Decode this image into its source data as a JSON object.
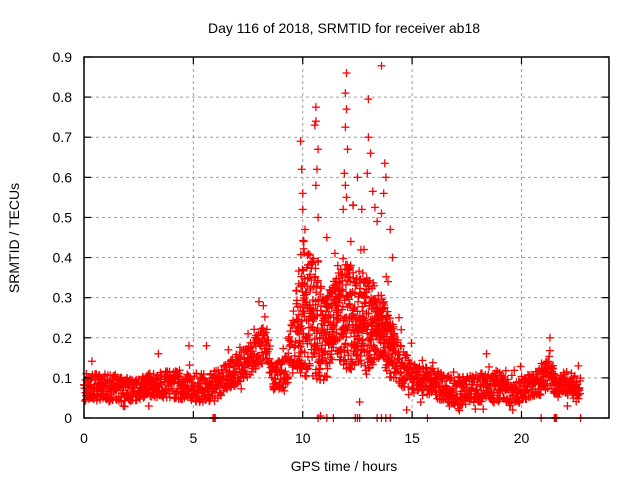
{
  "chart_data": {
    "type": "scatter",
    "title": "Day 116 of 2018, SRMTID for receiver ab18",
    "xlabel": "GPS time / hours",
    "ylabel": "SRMTID / TECUs",
    "xlim": [
      0,
      24
    ],
    "ylim": [
      0,
      0.9
    ],
    "xticks": [
      0,
      5,
      10,
      15,
      20
    ],
    "xtick_labels": [
      "0",
      "5",
      "10",
      "15",
      "20"
    ],
    "yticks": [
      0,
      0.1,
      0.2,
      0.3,
      0.4,
      0.5,
      0.6,
      0.7,
      0.8,
      0.9
    ],
    "ytick_labels": [
      "0",
      "0.1",
      "0.2",
      "0.3",
      "0.4",
      "0.5",
      "0.6",
      "0.7",
      "0.8",
      "0.9"
    ],
    "grid": true,
    "marker": "+",
    "color": "#ff0000",
    "series": [
      {
        "name": "SRMTID",
        "envelope_description": "Dense samples; baseline ~0.04-0.12 TECU from 0-6.5 h, rising to ~0.1-0.25 by 8 h, large scatter up to ~0.88 between 9.8-14 h, returning to ~0.03-0.15 from 15-22.7 h with a bump near 21.2 h",
        "envelope": [
          {
            "x": 0.0,
            "low": 0.04,
            "high": 0.11
          },
          {
            "x": 1.0,
            "low": 0.04,
            "high": 0.11
          },
          {
            "x": 2.0,
            "low": 0.04,
            "high": 0.1
          },
          {
            "x": 3.0,
            "low": 0.05,
            "high": 0.11
          },
          {
            "x": 4.0,
            "low": 0.05,
            "high": 0.12
          },
          {
            "x": 5.0,
            "low": 0.04,
            "high": 0.11
          },
          {
            "x": 6.0,
            "low": 0.04,
            "high": 0.12
          },
          {
            "x": 6.5,
            "low": 0.07,
            "high": 0.14
          },
          {
            "x": 7.0,
            "low": 0.08,
            "high": 0.16
          },
          {
            "x": 7.5,
            "low": 0.1,
            "high": 0.18
          },
          {
            "x": 8.0,
            "low": 0.13,
            "high": 0.24
          },
          {
            "x": 8.4,
            "low": 0.14,
            "high": 0.22
          },
          {
            "x": 8.6,
            "low": 0.07,
            "high": 0.14
          },
          {
            "x": 9.2,
            "low": 0.07,
            "high": 0.15
          },
          {
            "x": 9.6,
            "low": 0.12,
            "high": 0.28
          },
          {
            "x": 10.0,
            "low": 0.1,
            "high": 0.45
          },
          {
            "x": 10.5,
            "low": 0.1,
            "high": 0.4
          },
          {
            "x": 11.0,
            "low": 0.08,
            "high": 0.3
          },
          {
            "x": 11.5,
            "low": 0.15,
            "high": 0.35
          },
          {
            "x": 12.0,
            "low": 0.12,
            "high": 0.4
          },
          {
            "x": 12.5,
            "low": 0.12,
            "high": 0.38
          },
          {
            "x": 13.0,
            "low": 0.1,
            "high": 0.35
          },
          {
            "x": 13.5,
            "low": 0.15,
            "high": 0.32
          },
          {
            "x": 14.0,
            "low": 0.1,
            "high": 0.25
          },
          {
            "x": 14.5,
            "low": 0.08,
            "high": 0.18
          },
          {
            "x": 15.0,
            "low": 0.06,
            "high": 0.14
          },
          {
            "x": 16.0,
            "low": 0.05,
            "high": 0.12
          },
          {
            "x": 17.0,
            "low": 0.03,
            "high": 0.1
          },
          {
            "x": 18.0,
            "low": 0.04,
            "high": 0.11
          },
          {
            "x": 19.0,
            "low": 0.04,
            "high": 0.12
          },
          {
            "x": 19.5,
            "low": 0.03,
            "high": 0.09
          },
          {
            "x": 20.0,
            "low": 0.04,
            "high": 0.1
          },
          {
            "x": 21.0,
            "low": 0.06,
            "high": 0.13
          },
          {
            "x": 21.3,
            "low": 0.08,
            "high": 0.17
          },
          {
            "x": 21.6,
            "low": 0.05,
            "high": 0.1
          },
          {
            "x": 22.0,
            "low": 0.06,
            "high": 0.12
          },
          {
            "x": 22.7,
            "low": 0.04,
            "high": 0.1
          }
        ],
        "outliers": [
          {
            "x": 9.9,
            "y": 0.69
          },
          {
            "x": 9.95,
            "y": 0.62
          },
          {
            "x": 10.0,
            "y": 0.56
          },
          {
            "x": 10.0,
            "y": 0.52
          },
          {
            "x": 10.05,
            "y": 0.44
          },
          {
            "x": 10.1,
            "y": 0.47
          },
          {
            "x": 10.6,
            "y": 0.775
          },
          {
            "x": 10.6,
            "y": 0.74
          },
          {
            "x": 10.55,
            "y": 0.73
          },
          {
            "x": 10.7,
            "y": 0.67
          },
          {
            "x": 10.65,
            "y": 0.62
          },
          {
            "x": 10.6,
            "y": 0.58
          },
          {
            "x": 10.7,
            "y": 0.5
          },
          {
            "x": 12.0,
            "y": 0.86
          },
          {
            "x": 11.95,
            "y": 0.81
          },
          {
            "x": 12.0,
            "y": 0.77
          },
          {
            "x": 11.95,
            "y": 0.725
          },
          {
            "x": 12.05,
            "y": 0.67
          },
          {
            "x": 11.9,
            "y": 0.61
          },
          {
            "x": 11.95,
            "y": 0.58
          },
          {
            "x": 12.0,
            "y": 0.55
          },
          {
            "x": 11.85,
            "y": 0.52
          },
          {
            "x": 12.3,
            "y": 0.53
          },
          {
            "x": 12.5,
            "y": 0.6
          },
          {
            "x": 12.7,
            "y": 0.52
          },
          {
            "x": 13.0,
            "y": 0.795
          },
          {
            "x": 13.0,
            "y": 0.7
          },
          {
            "x": 13.1,
            "y": 0.66
          },
          {
            "x": 12.95,
            "y": 0.61
          },
          {
            "x": 13.2,
            "y": 0.565
          },
          {
            "x": 13.3,
            "y": 0.525
          },
          {
            "x": 13.4,
            "y": 0.49
          },
          {
            "x": 13.6,
            "y": 0.878
          },
          {
            "x": 13.75,
            "y": 0.635
          },
          {
            "x": 13.8,
            "y": 0.6
          },
          {
            "x": 13.7,
            "y": 0.56
          },
          {
            "x": 13.6,
            "y": 0.51
          },
          {
            "x": 14.0,
            "y": 0.47
          },
          {
            "x": 14.1,
            "y": 0.4
          },
          {
            "x": 13.9,
            "y": 0.34
          },
          {
            "x": 14.4,
            "y": 0.25
          },
          {
            "x": 14.5,
            "y": 0.22
          },
          {
            "x": 14.75,
            "y": 0.02
          },
          {
            "x": 12.6,
            "y": 0.04
          },
          {
            "x": 11.3,
            "y": 0.31
          },
          {
            "x": 10.3,
            "y": 0.35
          },
          {
            "x": 11.6,
            "y": 0.38
          },
          {
            "x": 12.2,
            "y": 0.44
          },
          {
            "x": 12.8,
            "y": 0.42
          },
          {
            "x": 11.1,
            "y": 0.45
          },
          {
            "x": 8.0,
            "y": 0.29
          },
          {
            "x": 8.2,
            "y": 0.28
          },
          {
            "x": 7.5,
            "y": 0.21
          },
          {
            "x": 6.6,
            "y": 0.17
          },
          {
            "x": 5.6,
            "y": 0.18
          },
          {
            "x": 3.4,
            "y": 0.16
          },
          {
            "x": 4.8,
            "y": 0.18
          },
          {
            "x": 1.8,
            "y": 0.03
          },
          {
            "x": 21.3,
            "y": 0.2
          },
          {
            "x": 18.4,
            "y": 0.16
          },
          {
            "x": 19.6,
            "y": 0.02
          },
          {
            "x": 22.6,
            "y": 0.13
          },
          {
            "x": 22.1,
            "y": 0.03
          }
        ],
        "zero_values_at_hours": [
          5.9,
          5.95,
          6.0,
          10.7,
          11.1,
          11.4,
          12.4,
          12.5,
          12.6,
          13.4,
          13.6,
          13.8,
          14.0,
          15.7,
          20.9,
          21.5,
          21.55,
          21.6,
          22.7
        ]
      }
    ]
  }
}
